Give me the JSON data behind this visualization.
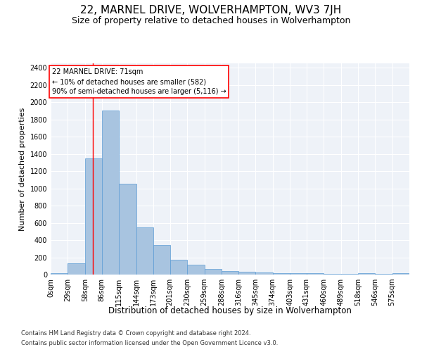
{
  "title": "22, MARNEL DRIVE, WOLVERHAMPTON, WV3 7JH",
  "subtitle": "Size of property relative to detached houses in Wolverhampton",
  "xlabel": "Distribution of detached houses by size in Wolverhampton",
  "ylabel": "Number of detached properties",
  "footnote1": "Contains HM Land Registry data © Crown copyright and database right 2024.",
  "footnote2": "Contains public sector information licensed under the Open Government Licence v3.0.",
  "annotation_line1": "22 MARNEL DRIVE: 71sqm",
  "annotation_line2": "← 10% of detached houses are smaller (582)",
  "annotation_line3": "90% of semi-detached houses are larger (5,116) →",
  "bar_color": "#a8c4e0",
  "bar_edge_color": "#5b9bd5",
  "vline_x": 71,
  "vline_color": "red",
  "categories": [
    "0sqm",
    "29sqm",
    "58sqm",
    "86sqm",
    "115sqm",
    "144sqm",
    "173sqm",
    "201sqm",
    "230sqm",
    "259sqm",
    "288sqm",
    "316sqm",
    "345sqm",
    "374sqm",
    "403sqm",
    "431sqm",
    "460sqm",
    "489sqm",
    "518sqm",
    "546sqm",
    "575sqm"
  ],
  "bin_edges": [
    0,
    29,
    58,
    86,
    115,
    144,
    173,
    201,
    230,
    259,
    288,
    316,
    345,
    374,
    403,
    431,
    460,
    489,
    518,
    546,
    575,
    604
  ],
  "values": [
    20,
    130,
    1350,
    1900,
    1050,
    550,
    340,
    175,
    115,
    65,
    40,
    30,
    25,
    20,
    15,
    20,
    5,
    5,
    20,
    5,
    15
  ],
  "ylim": [
    0,
    2450
  ],
  "yticks": [
    0,
    200,
    400,
    600,
    800,
    1000,
    1200,
    1400,
    1600,
    1800,
    2000,
    2200,
    2400
  ],
  "background_color": "#eef2f8",
  "grid_color": "#ffffff",
  "title_fontsize": 11,
  "subtitle_fontsize": 9,
  "xlabel_fontsize": 8.5,
  "ylabel_fontsize": 8,
  "tick_fontsize": 7,
  "footnote_fontsize": 6,
  "annotation_fontsize": 7
}
